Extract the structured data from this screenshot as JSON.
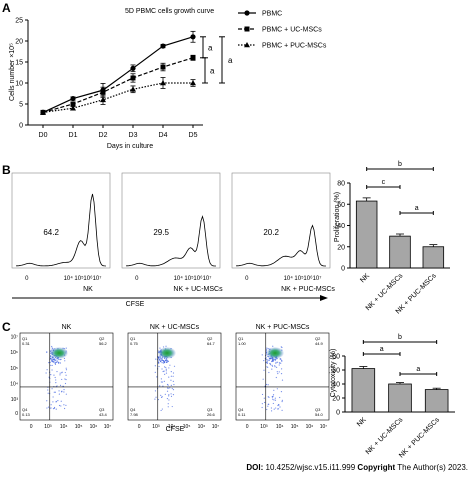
{
  "panels": {
    "a": "A",
    "b": "B",
    "c": "C"
  },
  "chart_data": [
    {
      "type": "line",
      "title": "5D PBMC cells growth curve",
      "xlabel": "Days in culture",
      "ylabel": "Cells number ×10⁵",
      "categories": [
        "D0",
        "D1",
        "D2",
        "D3",
        "D4",
        "D5"
      ],
      "ylim": [
        0,
        25
      ],
      "yticks": [
        "0",
        "5",
        "10",
        "15",
        "20",
        "25"
      ],
      "series": [
        {
          "name": "PBMC",
          "marker": "circle",
          "dash": "solid",
          "values": [
            3.0,
            6.3,
            8.3,
            13.5,
            18.8,
            21.0
          ],
          "errors": [
            0.3,
            0.4,
            1.6,
            0.8,
            0.4,
            1.3
          ]
        },
        {
          "name": "PBMC + UC-MSCs",
          "marker": "square",
          "dash": "dashed",
          "values": [
            3.0,
            5.0,
            7.8,
            11.2,
            13.8,
            16.0
          ],
          "errors": [
            0.3,
            0.4,
            1.2,
            1.0,
            0.9,
            0.6
          ]
        },
        {
          "name": "PBMC + PUC-MSCs",
          "marker": "triangle",
          "dash": "dotted",
          "values": [
            3.0,
            4.0,
            6.0,
            8.5,
            10.0,
            10.0
          ],
          "errors": [
            0.3,
            0.4,
            1.1,
            0.8,
            1.3,
            0.8
          ]
        }
      ],
      "significance": [
        "a",
        "a",
        "a"
      ],
      "legend": "right"
    },
    {
      "type": "histogram",
      "xlabel": "CFSE",
      "panels": [
        {
          "label": "NK",
          "value": "64.2"
        },
        {
          "label": "NK + UC-MSCs",
          "value": "29.5"
        },
        {
          "label": "NK + PUC-MSCs",
          "value": "20.2"
        }
      ],
      "xticks": [
        "0",
        "10³",
        "10⁴",
        "10⁵",
        "10⁶",
        "10⁷"
      ]
    },
    {
      "type": "bar",
      "ylabel": "Proliferation (%)",
      "categories": [
        "NK",
        "NK + UC-MSCs",
        "NK + PUC-MSCs"
      ],
      "values": [
        63,
        30,
        20
      ],
      "errors": [
        3,
        2,
        2
      ],
      "ylim": [
        0,
        80
      ],
      "yticks": [
        "0",
        "20",
        "40",
        "60",
        "80"
      ],
      "significance": [
        {
          "from": 0,
          "to": 2,
          "label": "b"
        },
        {
          "from": 0,
          "to": 1,
          "label": "c"
        },
        {
          "from": 1,
          "to": 2,
          "label": "a"
        }
      ]
    },
    {
      "type": "scatter",
      "xlabel": "CFSE",
      "panels": [
        {
          "title": "NK",
          "q1": "Q1\n0.31",
          "q2": "Q2\n56.2",
          "q3": "Q3\n43.4",
          "q4": "Q4\n0.13"
        },
        {
          "title": "NK + UC-MSCs",
          "q1": "Q1\n0.75",
          "q2": "Q2\n64.7",
          "q3": "Q3\n26.6",
          "q4": "Q4\n7.98"
        },
        {
          "title": "NK + PUC-MSCs",
          "q1": "Q1\n1.00",
          "q2": "Q2\n44.9",
          "q3": "Q3\n54.0",
          "q4": "Q4\n0.11"
        }
      ],
      "ylabel_ticks": [
        "10⁷",
        "10⁶",
        "10⁵",
        "10⁴",
        "10³",
        "0"
      ],
      "xticks": [
        "0",
        "10³",
        "10⁴",
        "10⁵",
        "10⁶",
        "10⁷"
      ]
    },
    {
      "type": "bar",
      "ylabel": "Cytotoxicity (%)",
      "categories": [
        "NK",
        "NK + UC-MSCs",
        "NK + PUC-MSCs"
      ],
      "values": [
        62,
        40,
        32
      ],
      "errors": [
        3,
        2,
        2
      ],
      "ylim": [
        0,
        80
      ],
      "yticks": [
        "0",
        "20",
        "40",
        "60",
        "80"
      ],
      "significance": [
        {
          "from": 0,
          "to": 2,
          "label": "b"
        },
        {
          "from": 0,
          "to": 1,
          "label": "a"
        },
        {
          "from": 1,
          "to": 2,
          "label": "a"
        }
      ]
    }
  ],
  "footer": {
    "doi_label": "DOI:",
    "doi": " 10.4252/wjsc.v15.i11.999 ",
    "copyright_label": "Copyright",
    "copyright_text": " The Author(s) 2023."
  }
}
